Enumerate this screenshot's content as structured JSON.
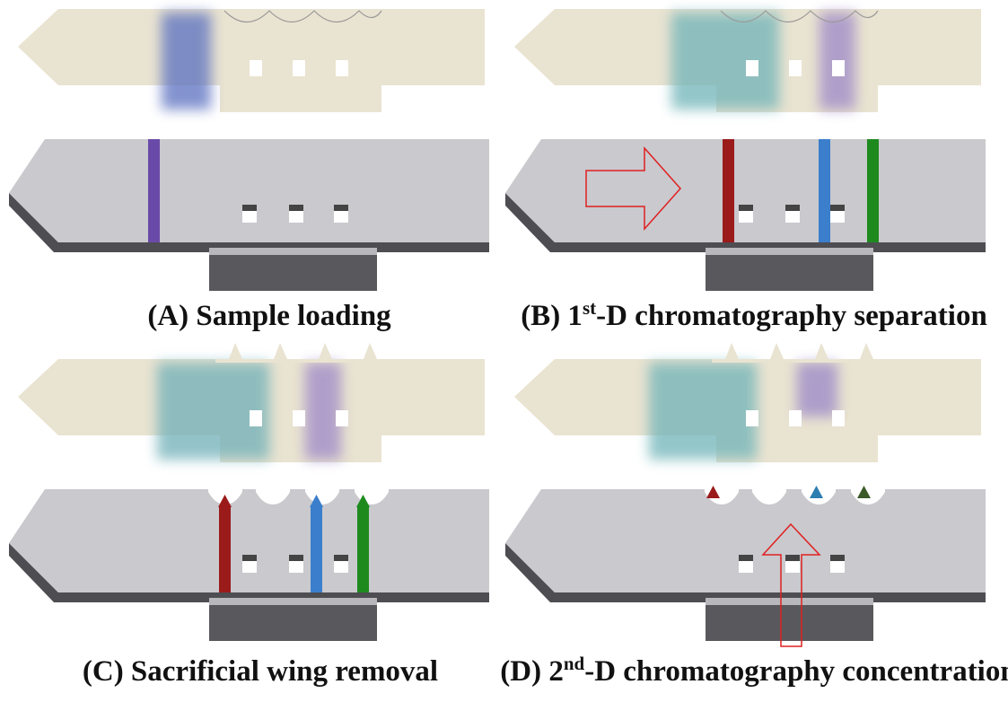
{
  "panels": [
    {
      "prefix": "(A) Sample loading"
    },
    {
      "prefix": "(B) 1",
      "sup": "st",
      "suffix": "-D chromatography  separation"
    },
    {
      "prefix": "(C) Sacrificial wing removal"
    },
    {
      "prefix": "(D) 2",
      "sup": "nd",
      "suffix": "-D chromatography concentration"
    }
  ]
}
